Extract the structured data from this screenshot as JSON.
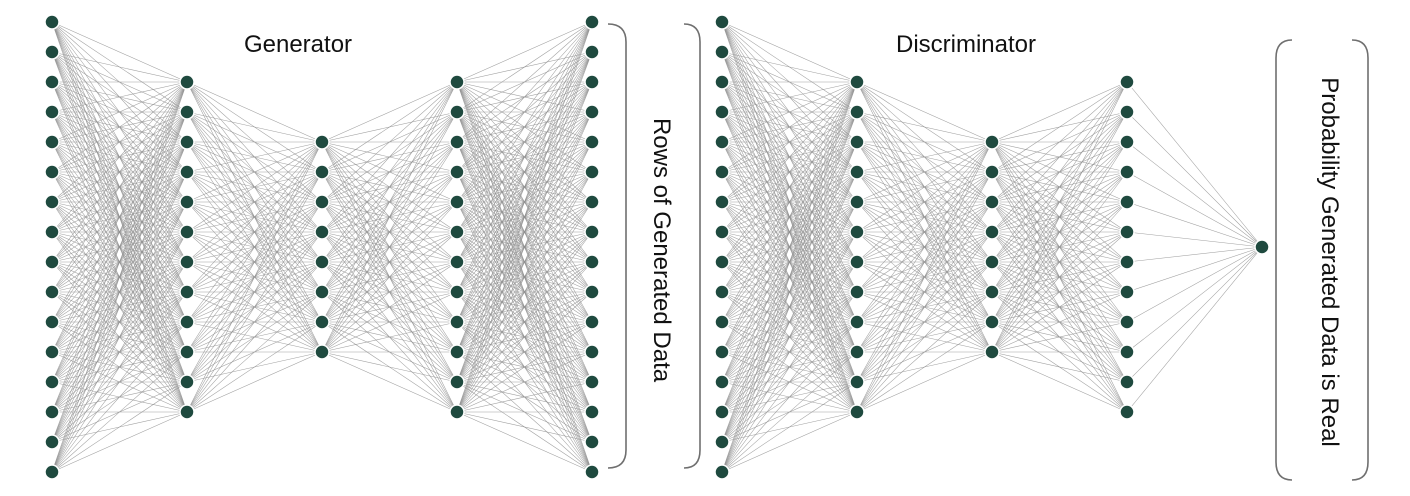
{
  "colors": {
    "node": "#1f4a3f",
    "edge": "#8f8f8f",
    "brace": "#6f6f6f",
    "text": "#111111"
  },
  "generator": {
    "title": "Generator",
    "layer_sizes": [
      16,
      12,
      8,
      12,
      16
    ]
  },
  "discriminator": {
    "title": "Discriminator",
    "layer_sizes": [
      16,
      12,
      8,
      12,
      1
    ]
  },
  "generator_output_label": "Rows of Generated Data",
  "discriminator_output_label": "Probability Generated Data is Real"
}
